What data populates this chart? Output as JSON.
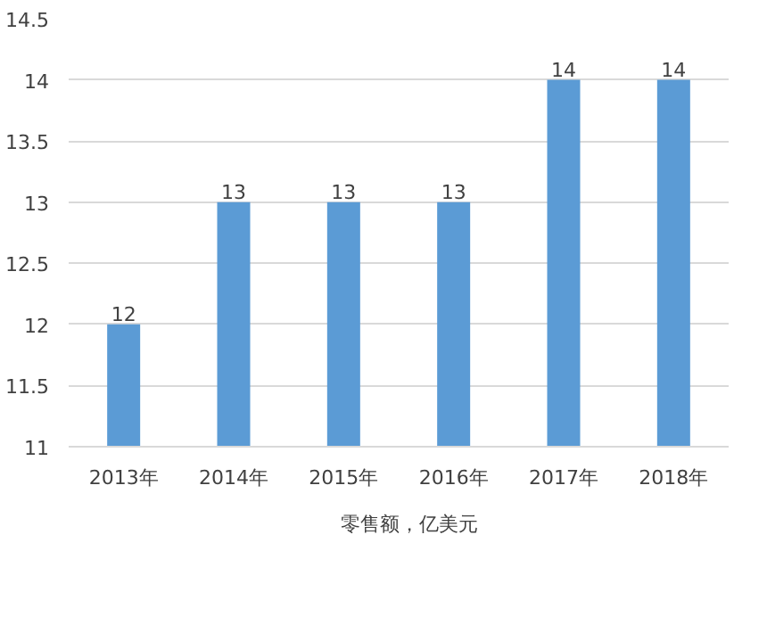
{
  "chart_data": {
    "type": "bar",
    "categories": [
      "2013年",
      "2014年",
      "2015年",
      "2016年",
      "2017年",
      "2018年"
    ],
    "series": [
      {
        "name": "零售额，亿美元",
        "color": "#5b9bd5",
        "values": [
          12,
          13,
          13,
          13,
          14,
          14
        ]
      }
    ],
    "ylim": [
      11,
      14.5
    ],
    "yticks": [
      11,
      11.5,
      12,
      12.5,
      13,
      13.5,
      14,
      14.5
    ],
    "grid": "y",
    "legend": "bottom",
    "data_labels": true
  }
}
